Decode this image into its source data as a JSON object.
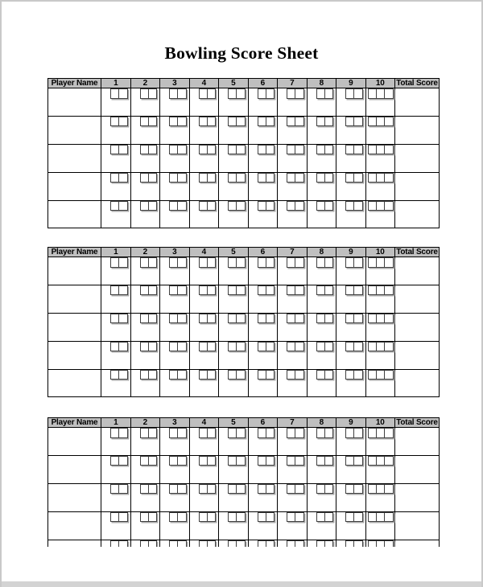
{
  "page": {
    "title": "Bowling Score Sheet"
  },
  "colors": {
    "header_bg": "#bfbfbf",
    "grid_border": "#000000",
    "box_border": "#404040",
    "box_shadow": "#ababab",
    "page_frame": "#c9c9c9",
    "bottom_band": "#d3d3d3",
    "title_color": "#000000"
  },
  "tables": [
    {
      "header": {
        "player_label": "Player Name",
        "frames": [
          "1",
          "2",
          "3",
          "4",
          "5",
          "6",
          "7",
          "8",
          "9",
          "10"
        ],
        "total_label": "Total Score"
      },
      "row_count": 5,
      "boxes_per_frame": 2,
      "boxes_final_frame": 3,
      "player_cell_value": "",
      "total_cell_value": ""
    },
    {
      "header": {
        "player_label": "Player Name",
        "frames": [
          "1",
          "2",
          "3",
          "4",
          "5",
          "6",
          "7",
          "8",
          "9",
          "10"
        ],
        "total_label": "Total Score"
      },
      "row_count": 5,
      "boxes_per_frame": 2,
      "boxes_final_frame": 3,
      "player_cell_value": "",
      "total_cell_value": ""
    },
    {
      "header": {
        "player_label": "Player Name",
        "frames": [
          "1",
          "2",
          "3",
          "4",
          "5",
          "6",
          "7",
          "8",
          "9",
          "10"
        ],
        "total_label": "Total Score"
      },
      "row_count": 5,
      "boxes_per_frame": 2,
      "boxes_final_frame": 3,
      "player_cell_value": "",
      "total_cell_value": ""
    }
  ]
}
